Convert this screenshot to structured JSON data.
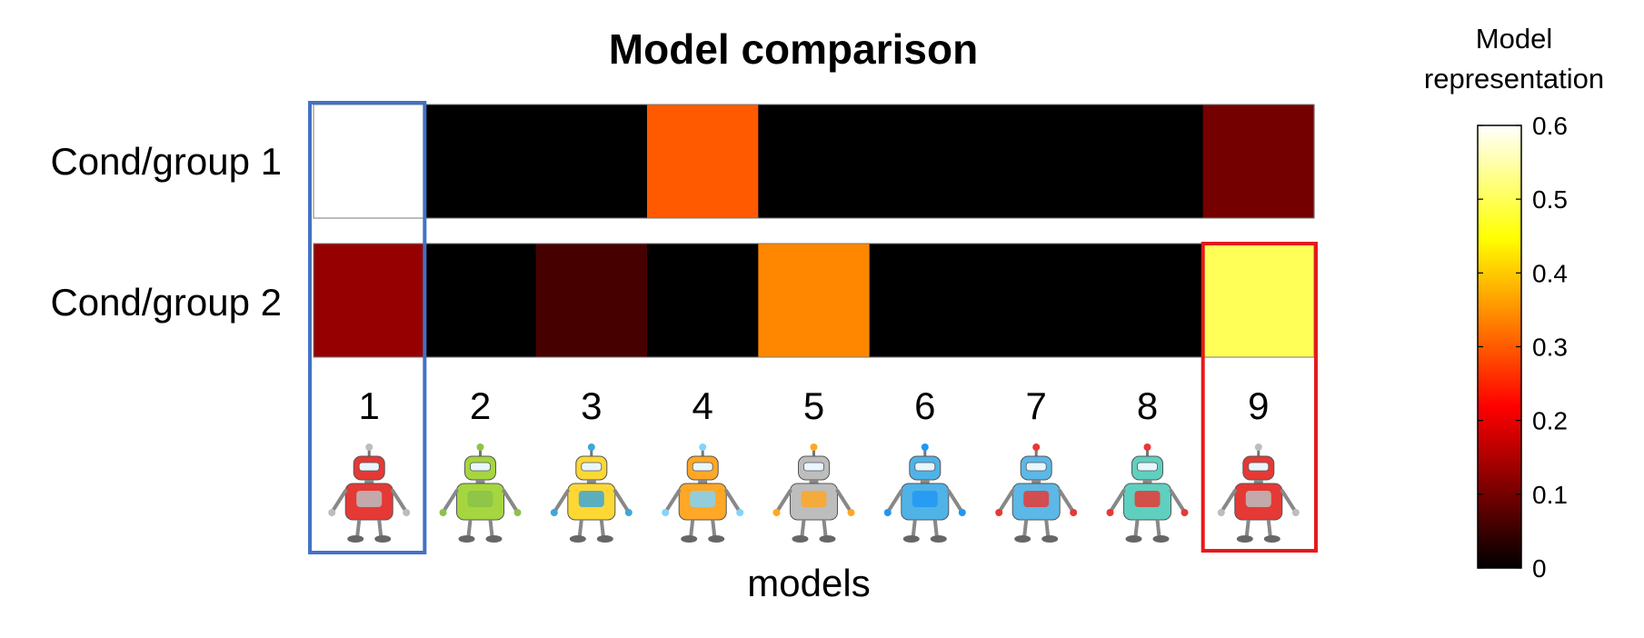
{
  "chart_data": {
    "type": "heatmap",
    "title": "Model comparison",
    "xlabel": "models",
    "ylabel": "",
    "rows": [
      "Cond/group 1",
      "Cond/group 2"
    ],
    "columns": [
      "1",
      "2",
      "3",
      "4",
      "5",
      "6",
      "7",
      "8",
      "9"
    ],
    "values": [
      [
        0.6,
        0.0,
        0.0,
        0.3,
        0.0,
        0.0,
        0.0,
        0.0,
        0.1
      ],
      [
        0.13,
        0.0,
        0.06,
        0.0,
        0.34,
        0.0,
        0.0,
        0.0,
        0.5
      ]
    ],
    "colormap": "hot",
    "colorbar": {
      "label": "Model representation",
      "label_lines": [
        "Model",
        "representation"
      ],
      "range": [
        0,
        0.6
      ],
      "ticks": [
        0,
        0.1,
        0.2,
        0.3,
        0.4,
        0.5,
        0.6
      ],
      "tick_labels": [
        "0",
        "0.1",
        "0.2",
        "0.3",
        "0.4",
        "0.5",
        "0.6"
      ]
    },
    "highlights": [
      {
        "column": "1",
        "color": "#4472c4"
      },
      {
        "column": "9",
        "color": "#e31a1c"
      }
    ]
  },
  "model_icons": [
    {
      "model": "1",
      "icon": "red-armored-robot-icon",
      "primary": "#e53935",
      "secondary": "#bdbdbd"
    },
    {
      "model": "2",
      "icon": "green-robot-icon",
      "primary": "#a5d63f",
      "secondary": "#8bc34a"
    },
    {
      "model": "3",
      "icon": "yellow-robot-on-wheels-icon",
      "primary": "#fdd835",
      "secondary": "#3fa7d6"
    },
    {
      "model": "4",
      "icon": "orange-robot-with-dome-icon",
      "primary": "#ffa726",
      "secondary": "#81d4fa"
    },
    {
      "model": "5",
      "icon": "gray-robot-icon",
      "primary": "#bdbdbd",
      "secondary": "#ffa726"
    },
    {
      "model": "6",
      "icon": "blue-robot-icon",
      "primary": "#4fb3e8",
      "secondary": "#2196f3"
    },
    {
      "model": "7",
      "icon": "wide-blue-robot-icon",
      "primary": "#5cb8e6",
      "secondary": "#e53935"
    },
    {
      "model": "8",
      "icon": "teal-robot-icon",
      "primary": "#5fd0c0",
      "secondary": "#e53935"
    },
    {
      "model": "9",
      "icon": "red-cone-robot-icon",
      "primary": "#e53935",
      "secondary": "#bdbdbd"
    }
  ]
}
